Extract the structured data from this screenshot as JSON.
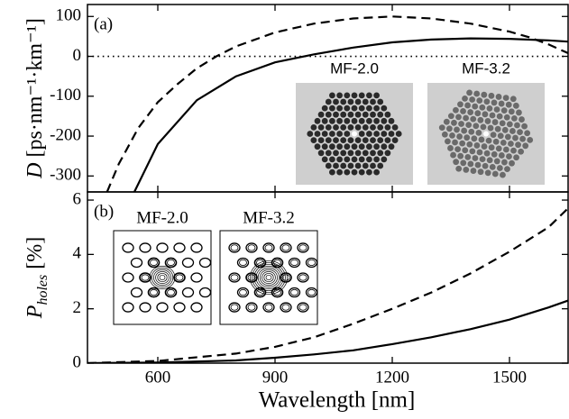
{
  "chart_data": [
    {
      "type": "line",
      "panel_label": "(a)",
      "ylabel": {
        "symbol": "D",
        "unit": " [ps·nm⁻¹·km⁻¹]"
      },
      "xlim": [
        420,
        1650
      ],
      "ylim": [
        -340,
        130
      ],
      "xticks": [
        600,
        900,
        1200,
        1500
      ],
      "yticks": [
        100,
        0,
        -100,
        -200,
        -300
      ],
      "reference_line": 0,
      "series": [
        {
          "color": "#000000",
          "dash": "solid",
          "x": [
            540,
            600,
            700,
            800,
            900,
            1000,
            1100,
            1200,
            1300,
            1400,
            1500,
            1600,
            1650
          ],
          "values": [
            -340,
            -220,
            -110,
            -50,
            -15,
            5,
            22,
            35,
            42,
            45,
            44,
            40,
            37
          ]
        },
        {
          "color": "#000000",
          "dash": "dashed",
          "x": [
            470,
            500,
            550,
            600,
            650,
            700,
            750,
            800,
            900,
            1000,
            1100,
            1200,
            1300,
            1400,
            1500,
            1550,
            1600,
            1650
          ],
          "values": [
            -340,
            -270,
            -180,
            -115,
            -70,
            -30,
            0,
            25,
            60,
            82,
            95,
            100,
            95,
            82,
            62,
            48,
            30,
            8
          ]
        }
      ],
      "insets": [
        {
          "label": "MF-2.0"
        },
        {
          "label": "MF-3.2"
        }
      ]
    },
    {
      "type": "line",
      "panel_label": "(b)",
      "ylabel": {
        "symbol": "P",
        "subscript": "holes",
        "unit": " [%]"
      },
      "xlabel": "Wavelength [nm]",
      "xlim": [
        420,
        1650
      ],
      "ylim": [
        0,
        6.3
      ],
      "xticks": [
        600,
        900,
        1200,
        1500
      ],
      "yticks": [
        0,
        2,
        4,
        6
      ],
      "series": [
        {
          "color": "#000000",
          "dash": "solid",
          "x": [
            420,
            600,
            800,
            900,
            1000,
            1100,
            1200,
            1300,
            1400,
            1500,
            1600,
            1650
          ],
          "values": [
            0,
            0.02,
            0.1,
            0.2,
            0.32,
            0.47,
            0.7,
            0.95,
            1.25,
            1.6,
            2.05,
            2.3
          ]
        },
        {
          "color": "#000000",
          "dash": "dashed",
          "x": [
            420,
            600,
            800,
            900,
            1000,
            1100,
            1200,
            1300,
            1400,
            1500,
            1600,
            1650
          ],
          "values": [
            0,
            0.08,
            0.35,
            0.6,
            0.95,
            1.45,
            2.0,
            2.6,
            3.3,
            4.1,
            5.0,
            5.7
          ]
        }
      ],
      "insets": [
        {
          "label": "MF-2.0"
        },
        {
          "label": "MF-3.2"
        }
      ]
    }
  ]
}
